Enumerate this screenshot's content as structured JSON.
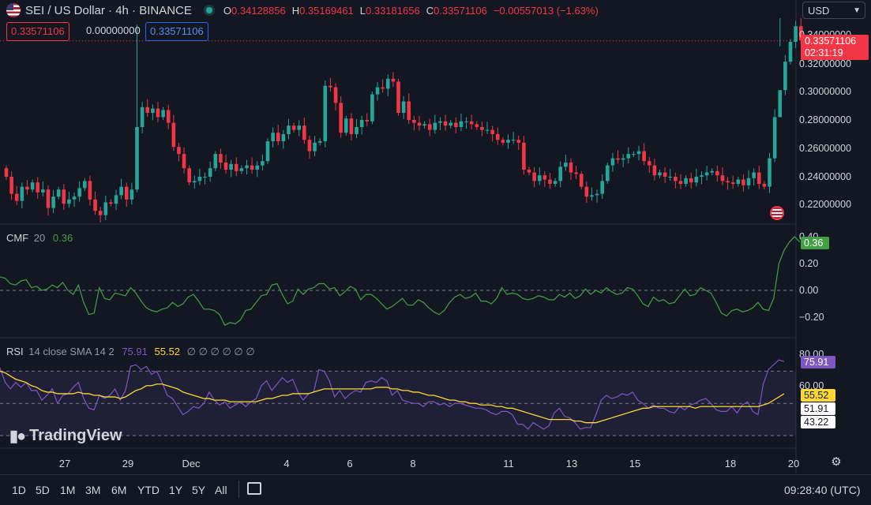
{
  "header": {
    "symbol": "SEI / US Dollar · 4h · BINANCE",
    "o_label": "O",
    "o": "0.34128856",
    "h_label": "H",
    "h": "0.35169461",
    "l_label": "L",
    "l": "0.33181656",
    "c_label": "C",
    "c": "0.33571106",
    "change": "−0.00557013 (−1.63%)"
  },
  "order_boxes": {
    "sell": "0.33571106",
    "spread": "0.00000000",
    "buy": "0.33571106"
  },
  "currency": {
    "selected": "USD"
  },
  "price_axis": {
    "ticks": [
      "0.34000000",
      "0.32000000",
      "0.30000000",
      "0.28000000",
      "0.26000000",
      "0.24000000",
      "0.22000000"
    ],
    "last_price": "0.33571106",
    "countdown": "02:31:19"
  },
  "cmf": {
    "name": "CMF",
    "param": "20",
    "value": "0.36",
    "axis": [
      "0.40",
      "0.20",
      "0.00",
      "−0.20"
    ]
  },
  "rsi": {
    "name": "RSI",
    "params": "14 close SMA 14 2",
    "value": "75.91",
    "sma": "55.52",
    "placeholders": "∅ ∅ ∅ ∅ ∅ ∅",
    "axis": [
      "80.00",
      "60.00"
    ],
    "upper_band": "51.91",
    "lower_band": "43.22"
  },
  "time_axis": [
    {
      "label": "27",
      "pos": 82
    },
    {
      "label": "29",
      "pos": 162
    },
    {
      "label": "Dec",
      "pos": 242
    },
    {
      "label": "4",
      "pos": 363
    },
    {
      "label": "6",
      "pos": 443
    },
    {
      "label": "8",
      "pos": 523
    },
    {
      "label": "11",
      "pos": 644
    },
    {
      "label": "13",
      "pos": 724
    },
    {
      "label": "15",
      "pos": 804
    },
    {
      "label": "18",
      "pos": 925
    },
    {
      "label": "20",
      "pos": 1005
    }
  ],
  "ranges": [
    "1D",
    "5D",
    "1M",
    "3M",
    "6M",
    "YTD",
    "1Y",
    "5Y",
    "All"
  ],
  "clock": "09:28:40 (UTC)",
  "watermark": "TradingView",
  "colors": {
    "up": "#26a69a",
    "down": "#f23645",
    "cmf": "#43a047",
    "rsi": "#7e57c2",
    "rsi_sma": "#fdd835",
    "bg": "#131722"
  },
  "chart_data": {
    "type": "candlestick",
    "interval": "4h",
    "ylim": [
      0.205,
      0.355
    ],
    "candles_close": [
      0.24,
      0.228,
      0.223,
      0.233,
      0.231,
      0.236,
      0.229,
      0.231,
      0.218,
      0.226,
      0.231,
      0.221,
      0.224,
      0.226,
      0.232,
      0.237,
      0.224,
      0.216,
      0.213,
      0.222,
      0.221,
      0.227,
      0.233,
      0.224,
      0.231,
      0.275,
      0.289,
      0.285,
      0.288,
      0.282,
      0.287,
      0.278,
      0.261,
      0.256,
      0.246,
      0.236,
      0.237,
      0.24,
      0.24,
      0.246,
      0.256,
      0.25,
      0.245,
      0.249,
      0.244,
      0.246,
      0.248,
      0.245,
      0.248,
      0.251,
      0.265,
      0.271,
      0.265,
      0.27,
      0.276,
      0.273,
      0.276,
      0.266,
      0.258,
      0.264,
      0.265,
      0.304,
      0.303,
      0.292,
      0.271,
      0.281,
      0.27,
      0.275,
      0.28,
      0.279,
      0.298,
      0.303,
      0.302,
      0.309,
      0.307,
      0.285,
      0.293,
      0.28,
      0.278,
      0.276,
      0.277,
      0.273,
      0.278,
      0.279,
      0.276,
      0.278,
      0.275,
      0.279,
      0.279,
      0.277,
      0.275,
      0.273,
      0.273,
      0.27,
      0.266,
      0.264,
      0.266,
      0.266,
      0.264,
      0.245,
      0.243,
      0.237,
      0.241,
      0.238,
      0.235,
      0.237,
      0.247,
      0.25,
      0.243,
      0.242,
      0.233,
      0.226,
      0.227,
      0.228,
      0.237,
      0.248,
      0.253,
      0.252,
      0.253,
      0.256,
      0.256,
      0.258,
      0.251,
      0.248,
      0.241,
      0.243,
      0.24,
      0.24,
      0.237,
      0.235,
      0.239,
      0.236,
      0.24,
      0.241,
      0.243,
      0.244,
      0.241,
      0.237,
      0.236,
      0.235,
      0.238,
      0.234,
      0.239,
      0.243,
      0.235,
      0.233,
      0.253,
      0.282,
      0.301,
      0.321,
      0.335,
      0.346,
      0.336
    ],
    "cmf_values": [
      0.1,
      0.09,
      0.05,
      0.04,
      0.07,
      0.08,
      0.02,
      0.03,
      0.0,
      0.01,
      0.04,
      0.02,
      0.06,
      0.0,
      -0.03,
      0.04,
      -0.09,
      -0.18,
      -0.17,
      0.02,
      -0.06,
      -0.07,
      -0.02,
      -0.03,
      -0.04,
      0.02,
      -0.02,
      -0.08,
      -0.13,
      -0.15,
      -0.16,
      -0.14,
      -0.13,
      -0.09,
      -0.12,
      -0.1,
      -0.05,
      -0.03,
      -0.08,
      -0.14,
      -0.14,
      -0.15,
      -0.18,
      -0.26,
      -0.24,
      -0.25,
      -0.22,
      -0.15,
      -0.14,
      -0.09,
      -0.04,
      -0.03,
      0.04,
      0.05,
      -0.03,
      -0.1,
      -0.08,
      0.01,
      -0.03,
      0.01,
      0.02,
      0.05,
      0.05,
      0.01,
      0.02,
      -0.04,
      -0.01,
      0.03,
      0.01,
      -0.07,
      -0.03,
      -0.03,
      -0.06,
      -0.1,
      -0.14,
      -0.12,
      -0.09,
      -0.06,
      -0.11,
      -0.11,
      -0.07,
      -0.09,
      -0.13,
      -0.16,
      -0.18,
      -0.15,
      -0.09,
      -0.05,
      -0.03,
      -0.06,
      -0.05,
      -0.02,
      -0.08,
      -0.08,
      -0.1,
      -0.06,
      0.02,
      -0.03,
      -0.02,
      -0.03,
      -0.06,
      -0.07,
      -0.06,
      -0.04,
      -0.05,
      -0.07,
      -0.07,
      -0.03,
      -0.05,
      -0.02,
      -0.06,
      -0.04,
      0.01,
      -0.03,
      0.0,
      -0.02,
      0.02,
      -0.01,
      -0.03,
      -0.02,
      0.02,
      0.01,
      -0.04,
      -0.1,
      -0.12,
      -0.05,
      -0.08,
      -0.07,
      -0.1,
      -0.09,
      -0.04,
      0.01,
      -0.04,
      -0.03,
      0.02,
      0.0,
      -0.02,
      -0.09,
      -0.17,
      -0.19,
      -0.15,
      -0.14,
      -0.16,
      -0.15,
      -0.13,
      -0.09,
      -0.14,
      -0.15,
      -0.06,
      0.2,
      0.3,
      0.36,
      0.4,
      0.36
    ],
    "rsi_values": [
      72,
      63,
      59,
      63,
      60,
      63,
      58,
      58,
      52,
      55,
      59,
      50,
      55,
      56,
      60,
      63,
      53,
      47,
      46,
      55,
      53,
      55,
      59,
      52,
      58,
      73,
      74,
      71,
      73,
      68,
      70,
      63,
      55,
      53,
      48,
      43,
      45,
      48,
      47,
      50,
      57,
      52,
      49,
      51,
      47,
      49,
      51,
      48,
      51,
      53,
      61,
      64,
      58,
      62,
      66,
      63,
      65,
      57,
      52,
      56,
      57,
      71,
      70,
      64,
      54,
      58,
      53,
      56,
      58,
      57,
      63,
      64,
      63,
      66,
      64,
      55,
      58,
      52,
      51,
      50,
      50,
      48,
      51,
      51,
      49,
      50,
      48,
      50,
      50,
      49,
      48,
      47,
      47,
      46,
      44,
      43,
      45,
      45,
      43,
      37,
      37,
      34,
      38,
      36,
      34,
      36,
      44,
      47,
      42,
      41,
      38,
      34,
      35,
      35,
      43,
      52,
      55,
      53,
      54,
      56,
      55,
      57,
      52,
      50,
      47,
      49,
      47,
      47,
      45,
      44,
      48,
      46,
      49,
      50,
      52,
      53,
      50,
      46,
      45,
      45,
      48,
      44,
      49,
      51,
      45,
      43,
      62,
      71,
      74,
      77,
      76
    ],
    "rsi_sma_values": [
      70,
      69,
      67,
      65,
      64,
      63,
      61,
      60,
      58,
      57,
      57,
      56,
      56,
      56,
      56,
      57,
      56,
      56,
      55,
      55,
      54,
      54,
      54,
      53,
      54,
      56,
      58,
      59,
      61,
      61,
      62,
      62,
      61,
      60,
      59,
      57,
      56,
      55,
      54,
      53,
      53,
      52,
      52,
      52,
      51,
      51,
      51,
      51,
      51,
      51,
      52,
      53,
      53,
      54,
      55,
      55,
      56,
      56,
      56,
      56,
      57,
      58,
      59,
      59,
      59,
      59,
      59,
      59,
      59,
      59,
      59,
      59,
      60,
      60,
      60,
      59,
      59,
      58,
      58,
      57,
      57,
      56,
      55,
      55,
      54,
      53,
      52,
      52,
      51,
      51,
      50,
      50,
      49,
      49,
      49,
      48,
      48,
      47,
      47,
      46,
      45,
      44,
      43,
      42,
      41,
      40,
      40,
      40,
      40,
      40,
      39,
      39,
      38,
      38,
      38,
      39,
      40,
      41,
      42,
      43,
      44,
      45,
      46,
      47,
      47,
      48,
      48,
      48,
      48,
      48,
      48,
      48,
      48,
      47,
      48,
      48,
      48,
      48,
      48,
      48,
      48,
      48,
      48,
      48,
      48,
      48,
      49,
      50,
      52,
      54,
      56
    ]
  }
}
